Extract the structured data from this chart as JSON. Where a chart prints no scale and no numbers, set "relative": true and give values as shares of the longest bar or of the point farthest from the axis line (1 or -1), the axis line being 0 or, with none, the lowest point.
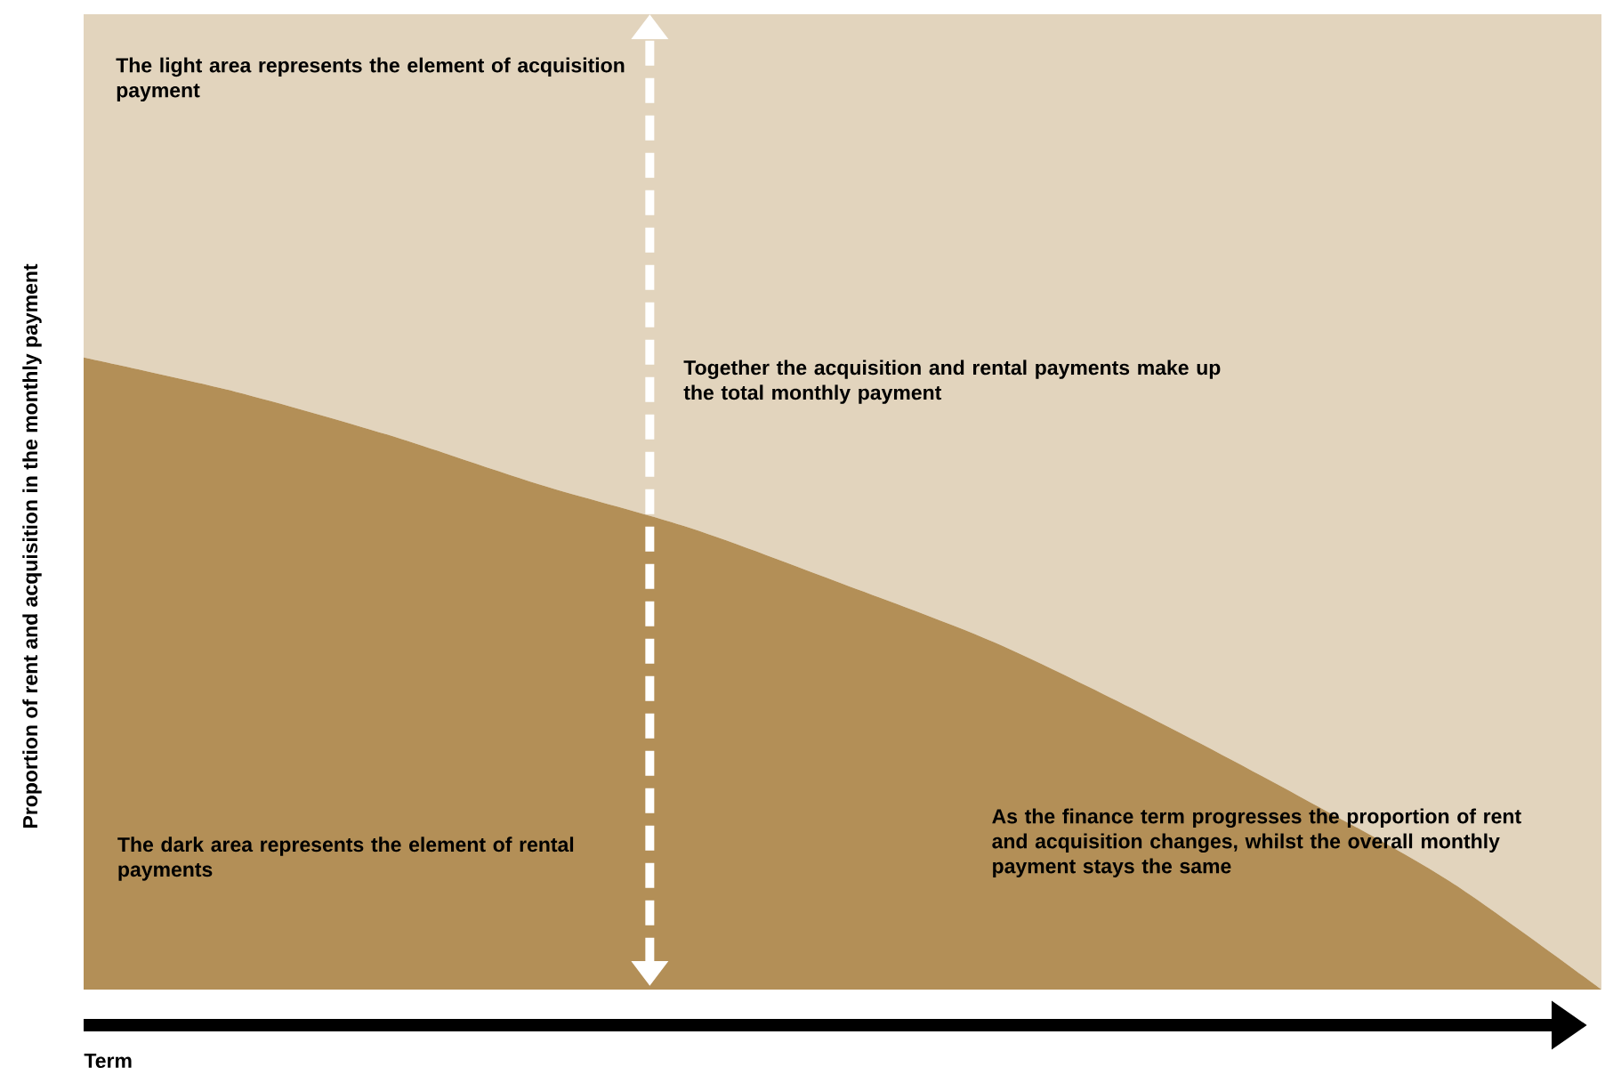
{
  "chart_data": {
    "type": "area",
    "stacked": true,
    "relative": true,
    "xlabel": "Term",
    "ylabel": "Proportion of rent and acquisition in the monthly payment",
    "categories": [
      null,
      null,
      null,
      null,
      null,
      null,
      null,
      null,
      null,
      null,
      null
    ],
    "series": [
      {
        "color": "#b38f57",
        "values": [
          0.648,
          0.613,
          0.569,
          0.518,
          0.473,
          0.416,
          0.356,
          0.281,
          0.199,
          0.111,
          0
        ]
      },
      {
        "color": "#e2d4bd",
        "values": [
          0.352,
          0.387,
          0.431,
          0.482,
          0.527,
          0.584,
          0.644,
          0.719,
          0.801,
          0.889,
          1.0
        ]
      }
    ],
    "annotations": [
      "The light area represents the element of acquisition payment",
      "Together the acquisition and rental payments make up the total monthly payment",
      "The dark area represents the element of rental payments",
      "As the finance term progresses the proportion of rent and acquisition changes, whilst the overall monthly payment stays the same"
    ]
  }
}
